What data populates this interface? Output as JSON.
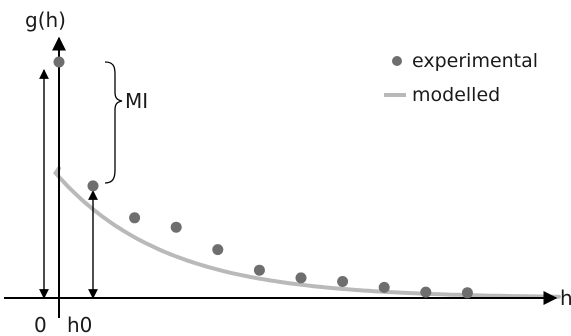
{
  "axes": {
    "y_label": "g(h)",
    "x_label": "h"
  },
  "x_ticks": [
    "0",
    "h0"
  ],
  "annotation": {
    "bracket_label": "MI"
  },
  "legend": {
    "experimental": "experimental",
    "modelled": "modelled"
  },
  "colors": {
    "points": "#6e6e6e",
    "model_curve": "#b9b9b9",
    "axes": "#000000"
  },
  "experimental_points": [
    {
      "h": 0.0,
      "g": 1.0
    },
    {
      "h": 1.0,
      "g": 0.475
    },
    {
      "h": 2.0,
      "g": 0.34
    },
    {
      "h": 3.0,
      "g": 0.3
    },
    {
      "h": 4.0,
      "g": 0.205
    },
    {
      "h": 5.0,
      "g": 0.118
    },
    {
      "h": 6.0,
      "g": 0.085
    },
    {
      "h": 7.0,
      "g": 0.07
    },
    {
      "h": 8.0,
      "g": 0.045
    },
    {
      "h": 9.0,
      "g": 0.025
    },
    {
      "h": 10.0,
      "g": 0.022
    }
  ],
  "model_curve": {
    "function": "exponential",
    "g_at_0": 0.55,
    "decay_per_h": 0.38,
    "h_range": [
      0,
      12.2
    ]
  }
}
